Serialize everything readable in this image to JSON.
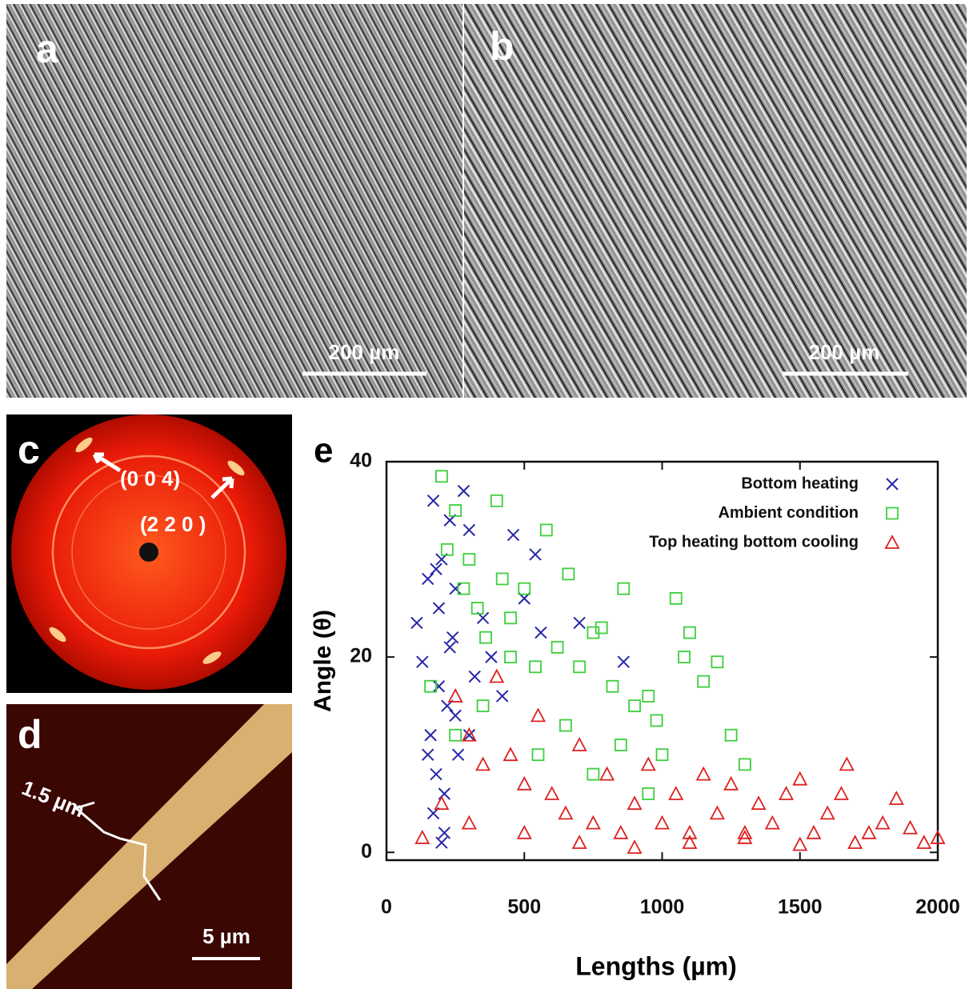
{
  "panels": {
    "a": {
      "label": "a",
      "scale_bar": "200 µm"
    },
    "b": {
      "label": "b",
      "scale_bar": "200 µm"
    },
    "c": {
      "label": "c",
      "annotations": [
        "(0 0 4)",
        "(2 2 0 )"
      ]
    },
    "d": {
      "label": "d",
      "width_label": "1.5 µm",
      "scale_bar": "5 µm"
    },
    "e": {
      "label": "e"
    }
  },
  "chart_data": {
    "type": "scatter",
    "x_label": "Lengths (µm)",
    "y_label": "Angle (θ)",
    "xlim": [
      0,
      2000
    ],
    "ylim": [
      -0.8,
      40
    ],
    "xticks": [
      0,
      500,
      1000,
      1500,
      2000
    ],
    "yticks": [
      0,
      20,
      40
    ],
    "legend": "upper right",
    "series": [
      {
        "name": "Bottom heating",
        "color": "#2626a8",
        "marker": "x",
        "x": [
          110,
          130,
          150,
          160,
          170,
          180,
          190,
          200,
          210,
          220,
          230,
          240,
          250,
          260,
          280,
          300,
          320,
          350,
          380,
          420,
          460,
          500,
          540,
          560,
          700,
          860,
          170,
          190,
          210,
          230,
          250,
          300,
          150,
          180,
          200
        ],
        "values": [
          23.5,
          19.5,
          28,
          12,
          36,
          8,
          25,
          30,
          2,
          15,
          34,
          22,
          27,
          10,
          37,
          33,
          18,
          24,
          20,
          16,
          32.5,
          26,
          30.5,
          22.5,
          23.5,
          19.5,
          4,
          17,
          6,
          21,
          14,
          12,
          10,
          29,
          1
        ]
      },
      {
        "name": "Ambient condition",
        "color": "#3ccf3c",
        "marker": "square",
        "x": [
          160,
          200,
          220,
          250,
          280,
          300,
          330,
          360,
          400,
          420,
          450,
          500,
          540,
          580,
          620,
          660,
          700,
          750,
          780,
          820,
          860,
          900,
          950,
          980,
          1000,
          1050,
          1080,
          1100,
          1150,
          1200,
          1250,
          1300,
          250,
          350,
          450,
          550,
          650,
          750,
          850,
          950
        ],
        "values": [
          17,
          38.5,
          31,
          35,
          27,
          30,
          25,
          22,
          36,
          28,
          24,
          27,
          19,
          33,
          21,
          28.5,
          19,
          22.5,
          23,
          17,
          27,
          15,
          16,
          13.5,
          10,
          26,
          20,
          22.5,
          17.5,
          19.5,
          12,
          9,
          12,
          15,
          20,
          10,
          13,
          8,
          11,
          6
        ]
      },
      {
        "name": "Top heating bottom cooling",
        "color": "#dd2020",
        "marker": "triangle",
        "x": [
          130,
          200,
          250,
          300,
          350,
          400,
          450,
          500,
          550,
          600,
          650,
          700,
          750,
          800,
          850,
          900,
          950,
          1000,
          1050,
          1100,
          1150,
          1200,
          1250,
          1300,
          1350,
          1400,
          1450,
          1500,
          1550,
          1600,
          1650,
          1670,
          1700,
          1750,
          1800,
          1850,
          1900,
          1950,
          2000,
          300,
          500,
          700,
          900,
          1100,
          1300,
          1500
        ],
        "values": [
          1.5,
          5,
          16,
          12,
          9,
          18,
          10,
          7,
          14,
          6,
          4,
          11,
          3,
          8,
          2,
          5,
          9,
          3,
          6,
          2,
          8,
          4,
          7,
          2,
          5,
          3,
          6,
          7.5,
          2,
          4,
          6,
          9,
          1,
          2,
          3,
          5.5,
          2.5,
          1,
          1.5,
          3,
          2,
          1,
          0.5,
          1,
          1.5,
          0.8
        ]
      }
    ]
  }
}
